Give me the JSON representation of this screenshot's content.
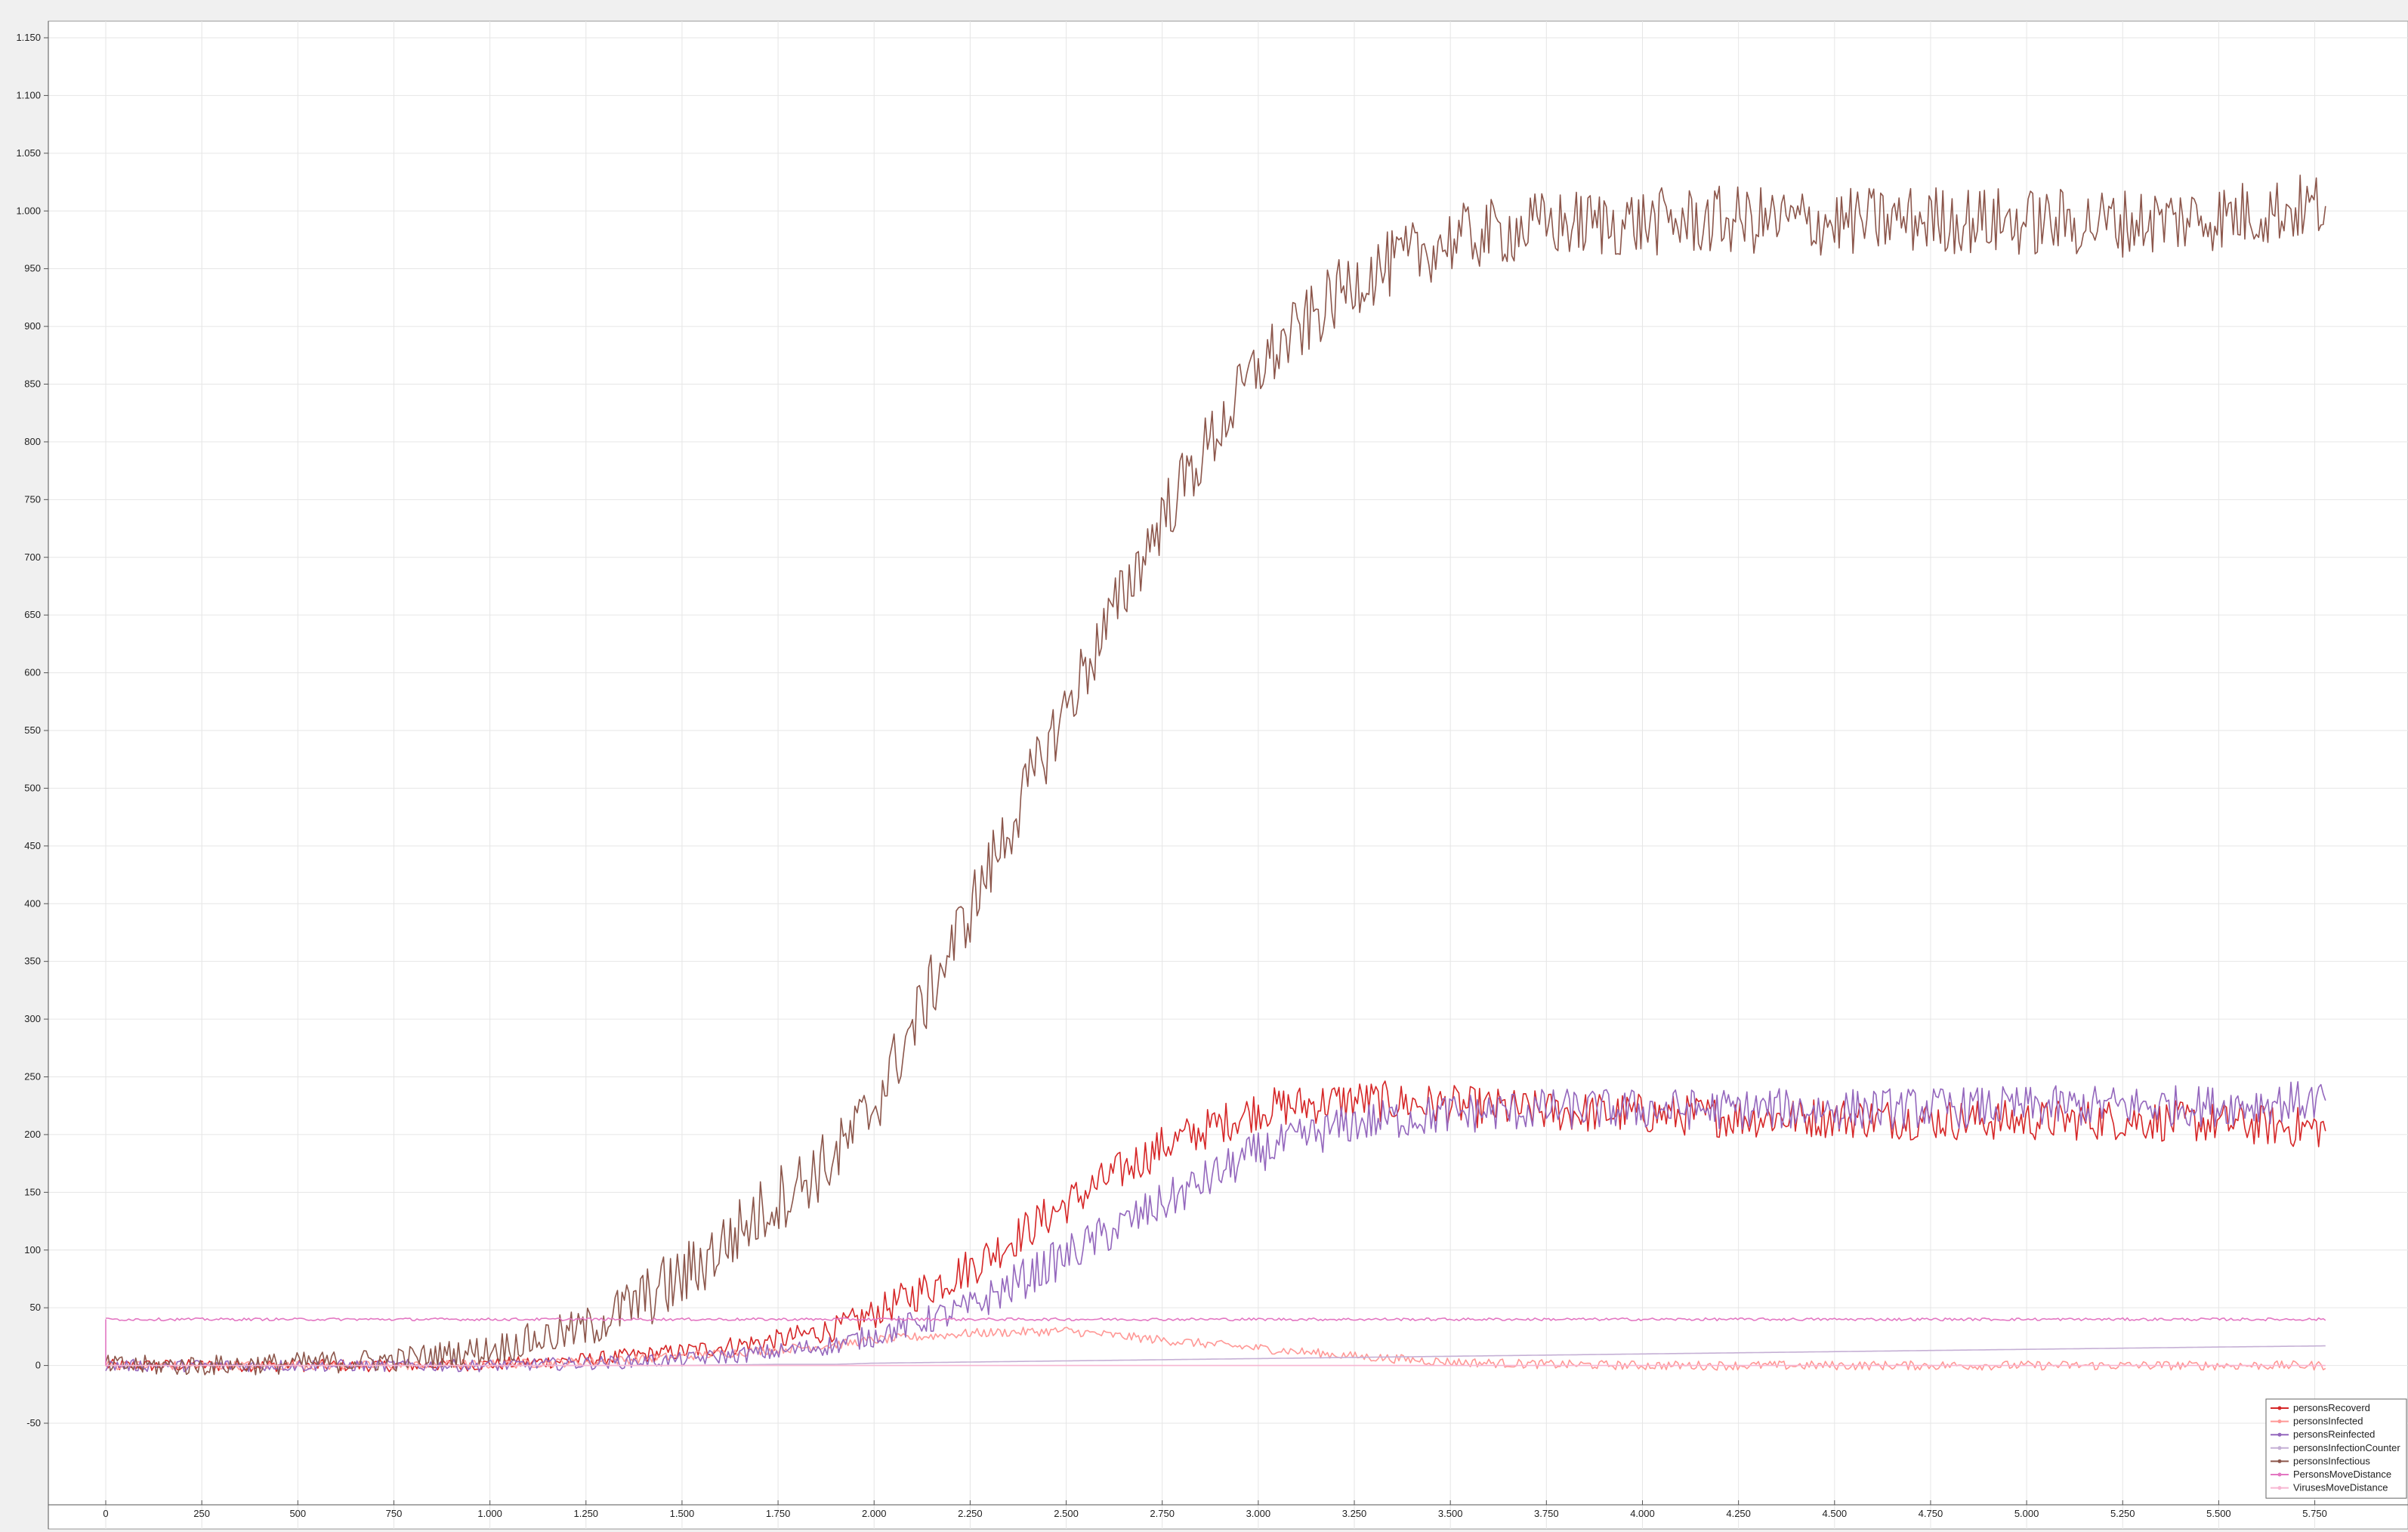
{
  "chart_data": {
    "type": "line",
    "xlim": [
      0,
      5800
    ],
    "ylim": [
      -50,
      1150
    ],
    "x_ticks": [
      0,
      250,
      500,
      750,
      1000,
      1250,
      1500,
      1750,
      2000,
      2250,
      2500,
      2750,
      3000,
      3250,
      3500,
      3750,
      4000,
      4250,
      4500,
      4750,
      5000,
      5250,
      5500,
      5750
    ],
    "x_tick_labels": [
      "0",
      "250",
      "500",
      "750",
      "1.000",
      "1.250",
      "1.500",
      "1.750",
      "2.000",
      "2.250",
      "2.500",
      "2.750",
      "3.000",
      "3.250",
      "3.500",
      "3.750",
      "4.000",
      "4.250",
      "4.500",
      "4.750",
      "5.000",
      "5.250",
      "5.500",
      "5.750"
    ],
    "y_ticks": [
      -50,
      0,
      50,
      100,
      150,
      200,
      250,
      300,
      350,
      400,
      450,
      500,
      550,
      600,
      650,
      700,
      750,
      800,
      850,
      900,
      950,
      1000,
      1050,
      1100,
      1150
    ],
    "y_tick_labels": [
      "-50",
      "0",
      "50",
      "100",
      "150",
      "200",
      "250",
      "300",
      "350",
      "400",
      "450",
      "500",
      "550",
      "600",
      "650",
      "700",
      "750",
      "800",
      "850",
      "900",
      "950",
      "1.000",
      "1.050",
      "1.100",
      "1.150"
    ],
    "grid": true,
    "legend_position": "bottom-right",
    "x": [
      0,
      250,
      500,
      750,
      1000,
      1250,
      1500,
      1750,
      1900,
      2000,
      2250,
      2500,
      2750,
      3000,
      3250,
      3500,
      3750,
      4000,
      4250,
      4500,
      4750,
      5000,
      5250,
      5500,
      5780
    ],
    "series": [
      {
        "name": "personsRecoverd",
        "color": "#d62728",
        "noise": 18,
        "values": [
          0,
          0,
          0,
          0,
          1,
          5,
          12,
          22,
          32,
          45,
          85,
          140,
          190,
          222,
          230,
          225,
          220,
          218,
          215,
          215,
          213,
          212,
          213,
          210,
          205
        ]
      },
      {
        "name": "personsInfected",
        "color": "#ff9896",
        "noise": 4,
        "values": [
          0,
          0,
          0,
          0,
          1,
          3,
          8,
          14,
          18,
          22,
          28,
          30,
          22,
          15,
          8,
          3,
          1,
          0,
          0,
          0,
          0,
          0,
          0,
          0,
          0
        ]
      },
      {
        "name": "personsReinfected",
        "color": "#9467bd",
        "noise": 18,
        "values": [
          0,
          0,
          0,
          0,
          0,
          2,
          5,
          12,
          18,
          26,
          50,
          95,
          140,
          185,
          210,
          218,
          222,
          222,
          222,
          222,
          223,
          224,
          225,
          225,
          230
        ]
      },
      {
        "name": "personsInfectionCounter",
        "color": "#c5b0d5",
        "noise": 0,
        "values": [
          0,
          0,
          0,
          0,
          0,
          0,
          0,
          1,
          1,
          2,
          3,
          4,
          5,
          6,
          7,
          8,
          9,
          10,
          11,
          12,
          13,
          14,
          15,
          16,
          17
        ]
      },
      {
        "name": "personsInfectious",
        "color": "#8c564b",
        "noise": 30,
        "values": [
          0,
          0,
          2,
          5,
          14,
          32,
          75,
          145,
          180,
          225,
          395,
          570,
          735,
          865,
          940,
          975,
          988,
          990,
          992,
          990,
          993,
          990,
          990,
          995,
          1005
        ]
      },
      {
        "name": "PersonsMoveDistance",
        "color": "#e377c2",
        "noise": 1.2,
        "values": [
          40,
          40,
          40,
          40,
          40,
          40,
          40,
          40,
          40,
          40,
          40,
          40,
          40,
          40,
          40,
          40,
          40,
          40,
          40,
          40,
          40,
          40,
          40,
          40,
          40
        ]
      },
      {
        "name": "VirusesMoveDistance",
        "color": "#f7b6d2",
        "noise": 0,
        "values": [
          0,
          0,
          0,
          0,
          0,
          0,
          0,
          0,
          0,
          0,
          0,
          0,
          0,
          0,
          0,
          0,
          0,
          0,
          0,
          0,
          0,
          0,
          0,
          0,
          0
        ]
      }
    ]
  }
}
